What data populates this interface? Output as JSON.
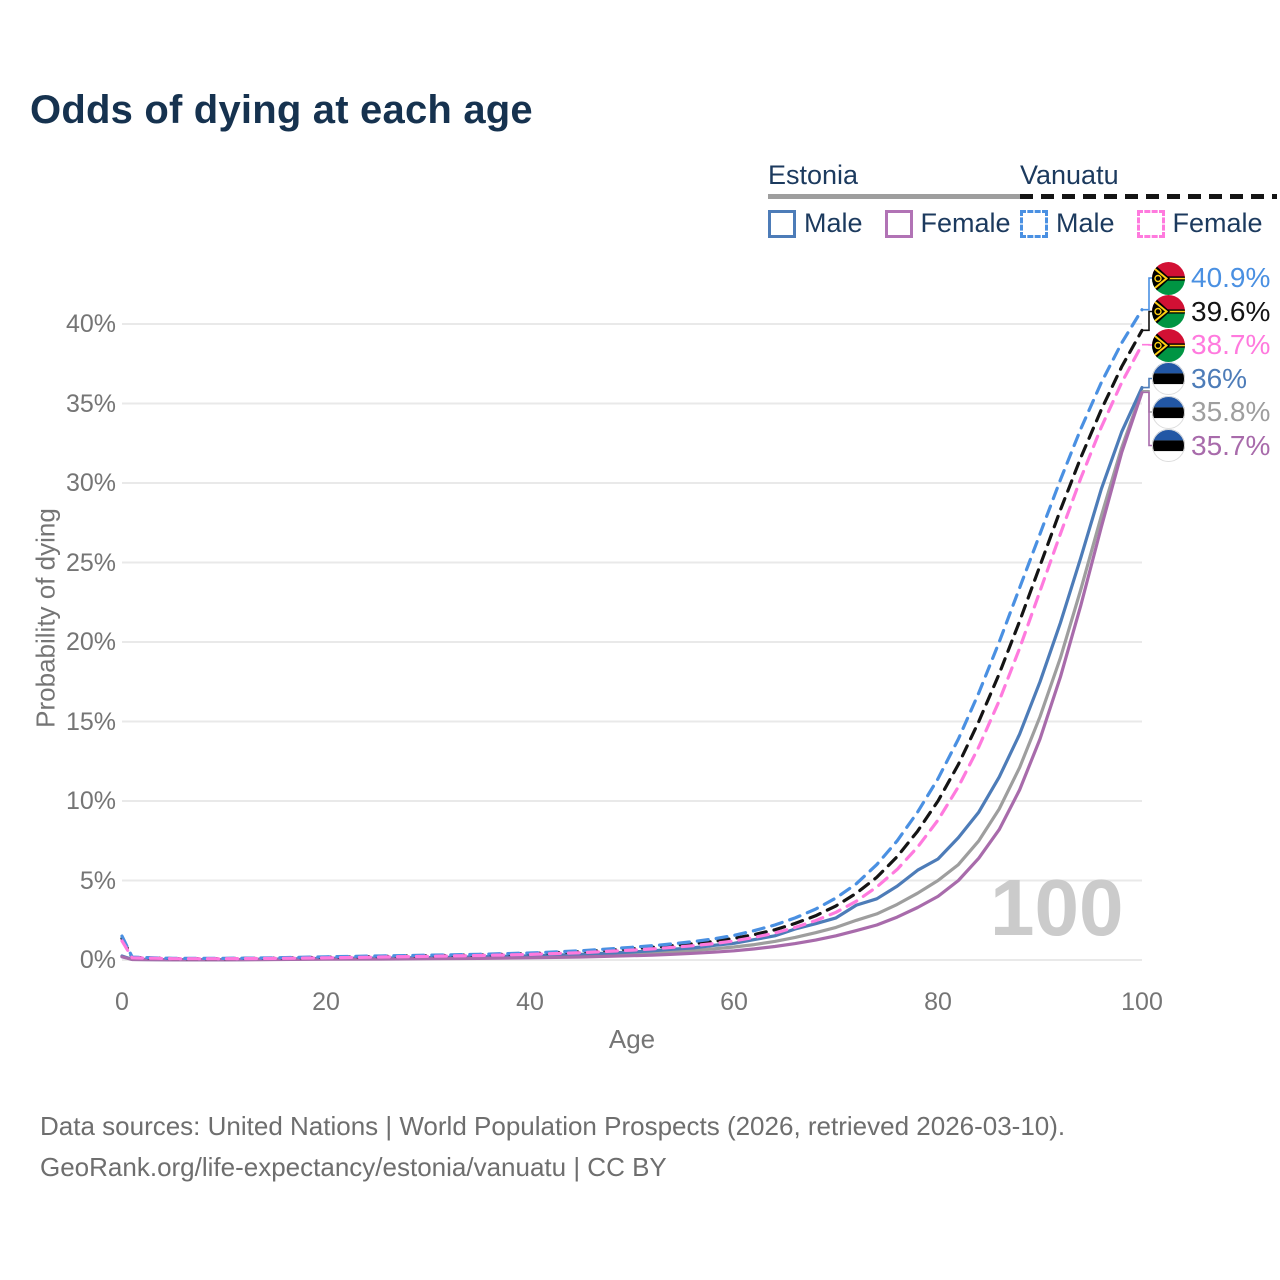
{
  "title": "Odds of dying at each age",
  "legend": {
    "estonia": {
      "title": "Estonia",
      "male": "Male",
      "female": "Female"
    },
    "vanuatu": {
      "title": "Vanuatu",
      "male": "Male",
      "female": "Female"
    }
  },
  "age_counter": "100",
  "footer": {
    "lines": [
      "Data sources: United Nations | World Population Prospects (2026, retrieved 2026-03-10).",
      "GeoRank.org/life-expectancy/estonia/vanuatu | CC BY"
    ]
  },
  "colors": {
    "title_text": "#16324f",
    "legend_text": "#1c3a5e",
    "axis_text": "#757575",
    "grid": "#e9e9e9",
    "watermark": "#cbcbcb",
    "estonia_male": "#4d7cb8",
    "estonia_total": "#9e9e9e",
    "estonia_female": "#a86bab",
    "vanuatu_male": "#4a90e2",
    "vanuatu_total": "#141414",
    "vanuatu_female": "#ff7ade",
    "estonia_flag_blue": "#2257a5",
    "vanuatu_flag_red": "#d21034",
    "vanuatu_flag_green": "#009543",
    "vanuatu_flag_yellow": "#fdce12"
  },
  "chart_data": {
    "type": "line",
    "title": "Odds of dying at each age",
    "xlabel": "Age",
    "ylabel": "Probability of dying",
    "xlim": [
      0,
      100
    ],
    "ylim": [
      0,
      42
    ],
    "grid": "horizontal",
    "x_ticks": [
      0,
      20,
      40,
      60,
      80,
      100
    ],
    "y_ticks": [
      0,
      5,
      10,
      15,
      20,
      25,
      30,
      35,
      40
    ],
    "y_tick_labels": [
      "0%",
      "5%",
      "10%",
      "15%",
      "20%",
      "25%",
      "30%",
      "35%",
      "40%"
    ],
    "x": [
      0,
      1,
      5,
      10,
      15,
      20,
      25,
      30,
      35,
      40,
      45,
      50,
      52,
      54,
      56,
      58,
      60,
      62,
      64,
      66,
      68,
      70,
      72,
      74,
      76,
      78,
      80,
      82,
      84,
      86,
      88,
      90,
      92,
      94,
      96,
      98,
      100
    ],
    "series": [
      {
        "key": "estonia-total",
        "name": "Estonia (total)",
        "country": "Estonia",
        "color": "#9e9e9e",
        "dashed": false,
        "values": [
          0.22,
          0.035,
          0.02,
          0.02,
          0.04,
          0.08,
          0.1,
          0.12,
          0.16,
          0.2,
          0.28,
          0.4,
          0.45,
          0.52,
          0.6,
          0.7,
          0.82,
          0.97,
          1.17,
          1.42,
          1.72,
          2.05,
          2.5,
          2.9,
          3.5,
          4.2,
          5.0,
          6.0,
          7.5,
          9.5,
          12.1,
          15.3,
          19.0,
          23.3,
          27.9,
          32.2,
          35.8
        ]
      },
      {
        "key": "estonia-male",
        "name": "Estonia Male",
        "country": "Estonia",
        "color": "#4d7cb8",
        "dashed": false,
        "values": [
          0.25,
          0.04,
          0.02,
          0.02,
          0.05,
          0.1,
          0.12,
          0.15,
          0.2,
          0.26,
          0.35,
          0.5,
          0.58,
          0.68,
          0.76,
          0.92,
          1.05,
          1.28,
          1.52,
          1.95,
          2.28,
          2.65,
          3.45,
          3.85,
          4.65,
          5.65,
          6.35,
          7.7,
          9.3,
          11.5,
          14.2,
          17.5,
          21.2,
          25.3,
          29.6,
          33.2,
          36.0
        ]
      },
      {
        "key": "estonia-female",
        "name": "Estonia Female",
        "country": "Estonia",
        "color": "#a86bab",
        "dashed": false,
        "values": [
          0.2,
          0.03,
          0.015,
          0.015,
          0.03,
          0.05,
          0.06,
          0.08,
          0.1,
          0.14,
          0.19,
          0.27,
          0.31,
          0.36,
          0.42,
          0.49,
          0.58,
          0.7,
          0.85,
          1.03,
          1.25,
          1.52,
          1.85,
          2.2,
          2.7,
          3.3,
          4.0,
          5.0,
          6.4,
          8.2,
          10.7,
          13.9,
          17.8,
          22.3,
          27.2,
          31.9,
          35.7
        ]
      },
      {
        "key": "vanuatu-total",
        "name": "Vanuatu (total)",
        "country": "Vanuatu",
        "color": "#141414",
        "dashed": true,
        "values": [
          1.35,
          0.16,
          0.09,
          0.09,
          0.12,
          0.17,
          0.22,
          0.27,
          0.32,
          0.4,
          0.52,
          0.7,
          0.8,
          0.9,
          1.02,
          1.17,
          1.36,
          1.6,
          1.9,
          2.3,
          2.78,
          3.4,
          4.2,
          5.2,
          6.5,
          8.1,
          10.0,
          12.3,
          15.0,
          18.0,
          21.3,
          24.8,
          28.3,
          31.6,
          34.6,
          37.3,
          39.6
        ]
      },
      {
        "key": "vanuatu-male",
        "name": "Vanuatu Male",
        "country": "Vanuatu",
        "color": "#4a90e2",
        "dashed": true,
        "values": [
          1.5,
          0.18,
          0.1,
          0.1,
          0.14,
          0.2,
          0.25,
          0.3,
          0.36,
          0.44,
          0.58,
          0.8,
          0.9,
          1.02,
          1.16,
          1.33,
          1.55,
          1.85,
          2.2,
          2.65,
          3.2,
          3.9,
          4.8,
          6.0,
          7.5,
          9.3,
          11.4,
          13.9,
          16.8,
          20.0,
          23.4,
          26.8,
          30.2,
          33.4,
          36.3,
          38.8,
          40.9
        ]
      },
      {
        "key": "vanuatu-female",
        "name": "Vanuatu Female",
        "country": "Vanuatu",
        "color": "#ff7ade",
        "dashed": true,
        "values": [
          1.2,
          0.14,
          0.08,
          0.08,
          0.1,
          0.14,
          0.18,
          0.23,
          0.28,
          0.35,
          0.46,
          0.62,
          0.7,
          0.8,
          0.9,
          1.03,
          1.2,
          1.42,
          1.7,
          2.05,
          2.48,
          3.0,
          3.7,
          4.6,
          5.7,
          7.1,
          8.8,
          10.9,
          13.4,
          16.3,
          19.6,
          23.2,
          26.8,
          30.3,
          33.5,
          36.3,
          38.7
        ]
      }
    ],
    "legend_position": "top-right",
    "end_labels": [
      {
        "series": "vanuatu-male",
        "flag": "vanuatu",
        "label": "40.9%",
        "value": 40.9,
        "color": "#4a90e2"
      },
      {
        "series": "vanuatu-total",
        "flag": "vanuatu",
        "label": "39.6%",
        "value": 39.6,
        "color": "#141414"
      },
      {
        "series": "vanuatu-female",
        "flag": "vanuatu",
        "label": "38.7%",
        "value": 38.7,
        "color": "#ff7ade"
      },
      {
        "series": "estonia-male",
        "flag": "estonia",
        "label": "36%",
        "value": 36.0,
        "color": "#4d7cb8"
      },
      {
        "series": "estonia-total",
        "flag": "estonia",
        "label": "35.8%",
        "value": 35.8,
        "color": "#9e9e9e"
      },
      {
        "series": "estonia-female",
        "flag": "estonia",
        "label": "35.7%",
        "value": 35.7,
        "color": "#a86bab"
      }
    ]
  }
}
